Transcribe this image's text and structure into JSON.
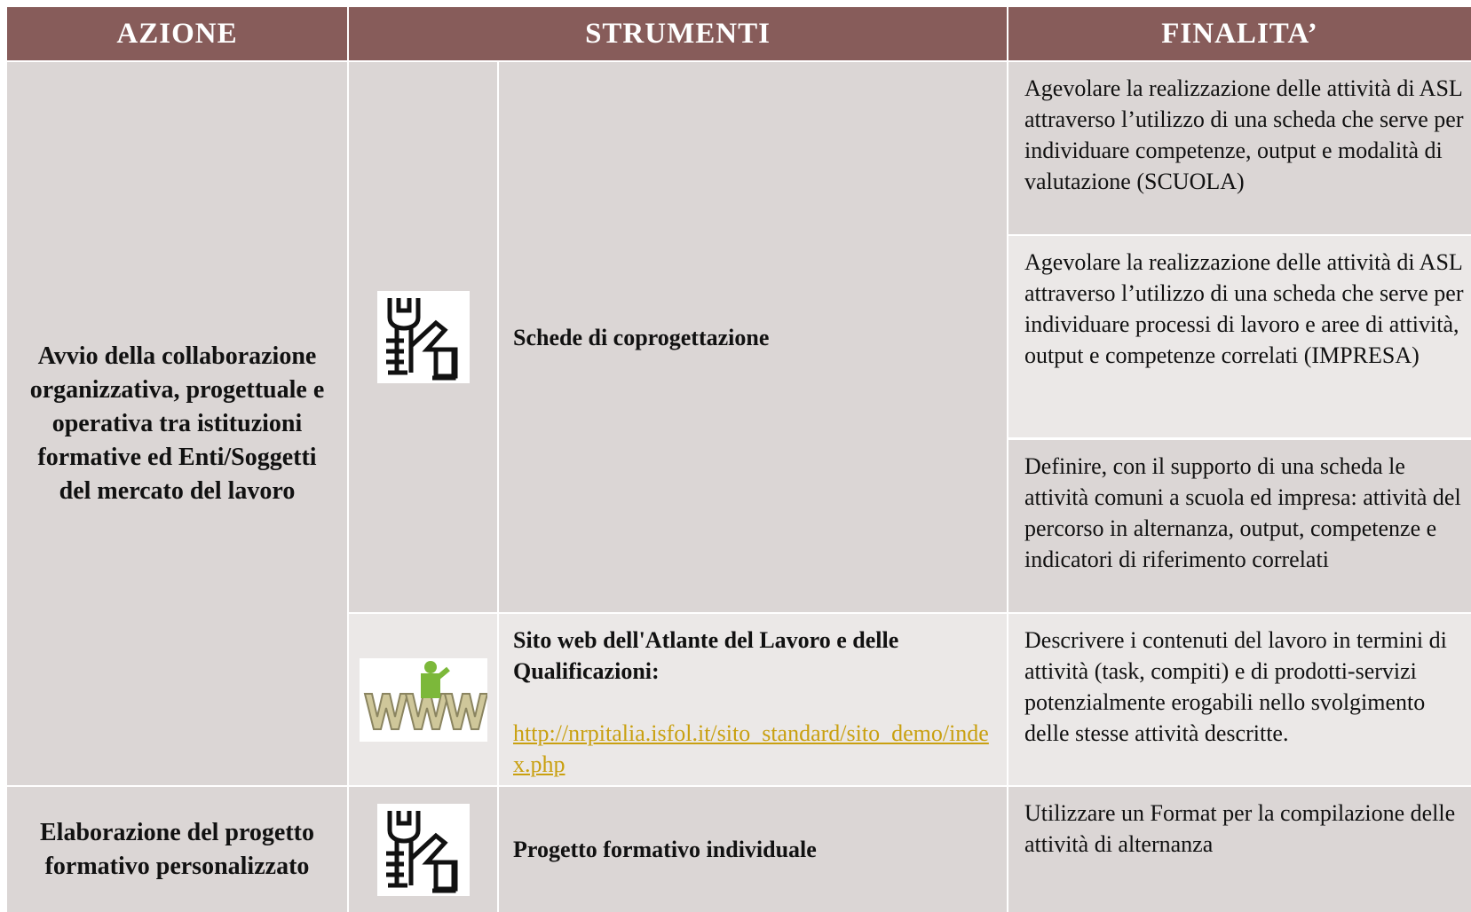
{
  "header": {
    "columns": [
      "AZIONE",
      "STRUMENTI",
      "FINALITA’"
    ]
  },
  "rows": [
    {
      "action": "Avvio della collaborazione organizzativa, progettuale e operativa tra istituzioni formative ed Enti/Soggetti del mercato del lavoro",
      "tools": [
        {
          "name": "Schede di coprogettazione",
          "purposes": [
            "Agevolare la realizzazione delle attività di ASL attraverso l’utilizzo di una scheda che serve per individuare competenze, output e modalità di valutazione (SCUOLA)",
            "Agevolare la realizzazione delle attività di ASL attraverso l’utilizzo di una scheda che serve per individuare processi di lavoro e aree di attività, output e competenze correlati (IMPRESA)",
            "Definire, con il supporto di una scheda le attività comuni a scuola ed impresa: attività del percorso in alternanza, output, competenze e indicatori di riferimento correlati"
          ]
        },
        {
          "name": "Sito web dell'Atlante del Lavoro e delle Qualificazioni:",
          "link": "http://nrpitalia.isfol.it/sito_standard/sito_demo/index.php",
          "purposes": [
            "Descrivere i contenuti del lavoro in termini di attività (task, compiti) e di prodotti-servizi potenzialmente erogabili nello svolgimento delle stesse attività descritte."
          ]
        }
      ]
    },
    {
      "action": "Elaborazione del progetto formativo personalizzato",
      "tools": [
        {
          "name": "Progetto formativo individuale",
          "purposes": [
            "Utilizzare un Format per la compilazione delle attività di alternanza"
          ]
        }
      ]
    }
  ]
}
